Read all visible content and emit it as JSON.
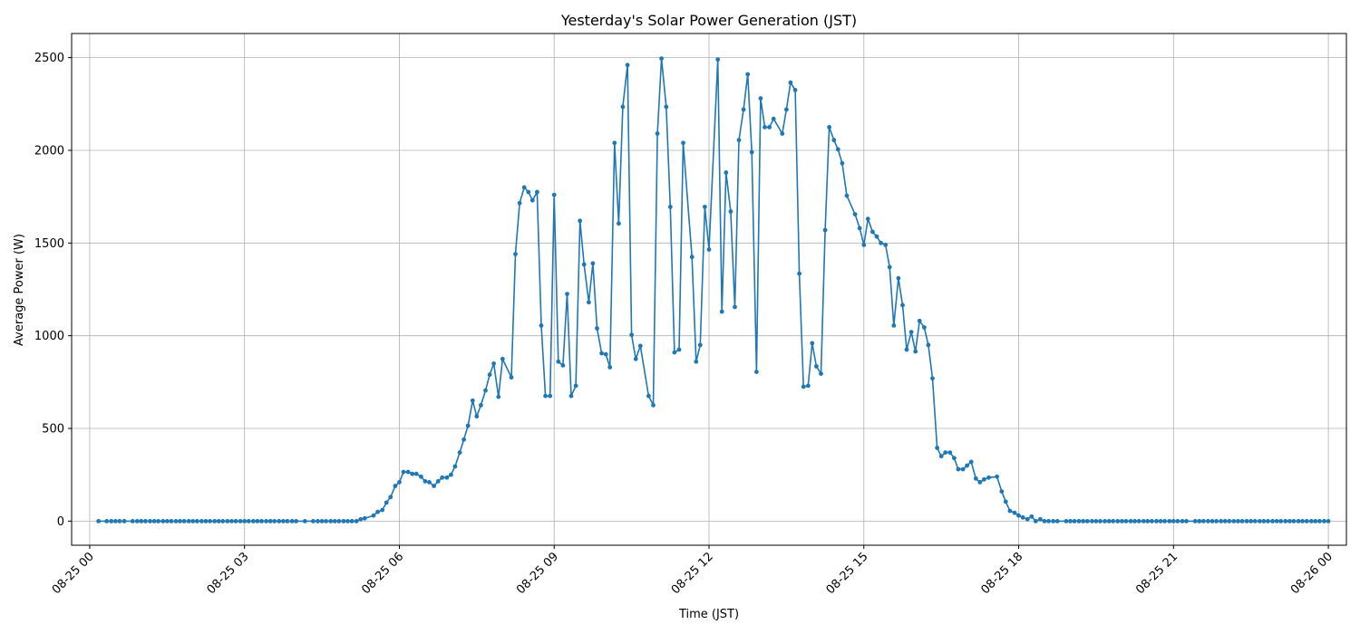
{
  "chart_data": {
    "type": "line",
    "title": "Yesterday's Solar Power Generation (JST)",
    "xlabel": "Time (JST)",
    "ylabel": "Average Power (W)",
    "xlim": [
      -0.35,
      24.35
    ],
    "ylim": [
      -130,
      2630
    ],
    "grid": true,
    "x_ticks": [
      {
        "hours": 0,
        "label": "08-25 00"
      },
      {
        "hours": 3,
        "label": "08-25 03"
      },
      {
        "hours": 6,
        "label": "08-25 06"
      },
      {
        "hours": 9,
        "label": "08-25 09"
      },
      {
        "hours": 12,
        "label": "08-25 12"
      },
      {
        "hours": 15,
        "label": "08-25 15"
      },
      {
        "hours": 18,
        "label": "08-25 18"
      },
      {
        "hours": 21,
        "label": "08-25 21"
      },
      {
        "hours": 24,
        "label": "08-26 00"
      }
    ],
    "y_ticks": [
      0,
      500,
      1000,
      1500,
      2000,
      2500
    ],
    "series": [
      {
        "name": "Average Power (W)",
        "color": "#1f77b4",
        "x_hours": [
          0.17,
          0.33,
          0.42,
          0.5,
          0.58,
          0.67,
          0.83,
          0.92,
          1.0,
          1.08,
          1.17,
          1.25,
          1.33,
          1.42,
          1.5,
          1.58,
          1.67,
          1.75,
          1.83,
          1.92,
          2.0,
          2.08,
          2.17,
          2.25,
          2.33,
          2.42,
          2.5,
          2.58,
          2.67,
          2.75,
          2.83,
          2.92,
          3.0,
          3.08,
          3.17,
          3.25,
          3.33,
          3.42,
          3.5,
          3.58,
          3.67,
          3.75,
          3.83,
          3.92,
          4.0,
          4.17,
          4.33,
          4.42,
          4.5,
          4.58,
          4.67,
          4.75,
          4.83,
          4.92,
          5.0,
          5.08,
          5.17,
          5.25,
          5.33,
          5.5,
          5.58,
          5.67,
          5.75,
          5.83,
          5.92,
          6.0,
          6.08,
          6.17,
          6.25,
          6.33,
          6.42,
          6.5,
          6.58,
          6.67,
          6.75,
          6.83,
          6.92,
          7.0,
          7.08,
          7.17,
          7.25,
          7.33,
          7.42,
          7.5,
          7.58,
          7.67,
          7.75,
          7.83,
          7.92,
          8.0,
          8.17,
          8.25,
          8.33,
          8.42,
          8.5,
          8.58,
          8.67,
          8.75,
          8.83,
          8.92,
          9.0,
          9.08,
          9.17,
          9.25,
          9.33,
          9.42,
          9.5,
          9.58,
          9.67,
          9.75,
          9.83,
          9.92,
          10.0,
          10.08,
          10.17,
          10.25,
          10.33,
          10.42,
          10.5,
          10.58,
          10.67,
          10.83,
          10.92,
          11.0,
          11.08,
          11.17,
          11.25,
          11.33,
          11.42,
          11.5,
          11.67,
          11.75,
          11.83,
          11.92,
          12.0,
          12.17,
          12.25,
          12.33,
          12.42,
          12.5,
          12.58,
          12.67,
          12.75,
          12.83,
          12.92,
          13.0,
          13.08,
          13.17,
          13.25,
          13.42,
          13.5,
          13.58,
          13.67,
          13.75,
          13.83,
          13.92,
          14.0,
          14.08,
          14.17,
          14.25,
          14.33,
          14.42,
          14.5,
          14.58,
          14.67,
          14.83,
          14.92,
          15.0,
          15.08,
          15.17,
          15.25,
          15.33,
          15.42,
          15.5,
          15.58,
          15.67,
          15.75,
          15.83,
          15.92,
          16.0,
          16.08,
          16.17,
          16.25,
          16.33,
          16.42,
          16.5,
          16.58,
          16.67,
          16.75,
          16.83,
          16.92,
          17.0,
          17.08,
          17.17,
          17.25,
          17.33,
          17.42,
          17.58,
          17.67,
          17.75,
          17.83,
          17.92,
          18.0,
          18.08,
          18.17,
          18.25,
          18.33,
          18.42,
          18.5,
          18.58,
          18.67,
          18.75,
          18.92,
          19.0,
          19.08,
          19.17,
          19.25,
          19.33,
          19.42,
          19.5,
          19.58,
          19.67,
          19.75,
          19.83,
          19.92,
          20.0,
          20.08,
          20.17,
          20.25,
          20.33,
          20.42,
          20.5,
          20.58,
          20.67,
          20.75,
          20.83,
          20.92,
          21.0,
          21.08,
          21.17,
          21.25,
          21.42,
          21.5,
          21.58,
          21.67,
          21.75,
          21.83,
          21.92,
          22.0,
          22.08,
          22.17,
          22.25,
          22.33,
          22.42,
          22.5,
          22.58,
          22.67,
          22.75,
          22.83,
          22.92,
          23.0,
          23.08,
          23.17,
          23.25,
          23.33,
          23.42,
          23.5,
          23.58,
          23.67,
          23.75,
          23.83,
          23.92,
          24.0
        ],
        "values": [
          0,
          0,
          0,
          0,
          0,
          0,
          0,
          0,
          0,
          0,
          0,
          0,
          0,
          0,
          0,
          0,
          0,
          0,
          0,
          0,
          0,
          0,
          0,
          0,
          0,
          0,
          0,
          0,
          0,
          0,
          0,
          0,
          0,
          0,
          0,
          0,
          0,
          0,
          0,
          0,
          0,
          0,
          0,
          0,
          0,
          0,
          0,
          0,
          0,
          0,
          0,
          0,
          0,
          0,
          0,
          0,
          0,
          10,
          15,
          30,
          50,
          60,
          100,
          130,
          190,
          210,
          265,
          265,
          255,
          255,
          240,
          215,
          210,
          190,
          215,
          235,
          235,
          250,
          295,
          370,
          440,
          515,
          650,
          565,
          625,
          705,
          790,
          850,
          670,
          875,
          775,
          1440,
          1715,
          1800,
          1775,
          1730,
          1775,
          1055,
          675,
          675,
          1760,
          860,
          840,
          1225,
          675,
          730,
          1620,
          1385,
          1180,
          1390,
          1040,
          905,
          900,
          830,
          2040,
          1605,
          2235,
          2460,
          1005,
          875,
          945,
          675,
          625,
          2090,
          2495,
          2235,
          1695,
          910,
          925,
          2040,
          1425,
          860,
          950,
          1695,
          1465,
          2490,
          1130,
          1880,
          1670,
          1155,
          2055,
          2220,
          2410,
          1990,
          805,
          2280,
          2125,
          2125,
          2170,
          2090,
          2220,
          2365,
          2325,
          1335,
          725,
          730,
          960,
          835,
          795,
          1570,
          2125,
          2055,
          2005,
          1930,
          1755,
          1655,
          1580,
          1490,
          1630,
          1560,
          1535,
          1500,
          1490,
          1370,
          1055,
          1310,
          1165,
          925,
          1020,
          915,
          1080,
          1045,
          950,
          770,
          395,
          350,
          370,
          370,
          340,
          280,
          280,
          300,
          320,
          230,
          210,
          225,
          235,
          240,
          160,
          105,
          55,
          45,
          30,
          20,
          10,
          25,
          0,
          10,
          0,
          0,
          0,
          0,
          0,
          0,
          0,
          0,
          0,
          0,
          0,
          0,
          0,
          0,
          0,
          0,
          0,
          0,
          0,
          0,
          0,
          0,
          0,
          0,
          0,
          0,
          0,
          0,
          0,
          0,
          0,
          0,
          0,
          0,
          0,
          0,
          0,
          0,
          0,
          0,
          0,
          0,
          0,
          0,
          0,
          0,
          0,
          0,
          0,
          0,
          0,
          0,
          0,
          0,
          0,
          0,
          0,
          0,
          0,
          0,
          0,
          0,
          0,
          0,
          0
        ]
      }
    ]
  }
}
